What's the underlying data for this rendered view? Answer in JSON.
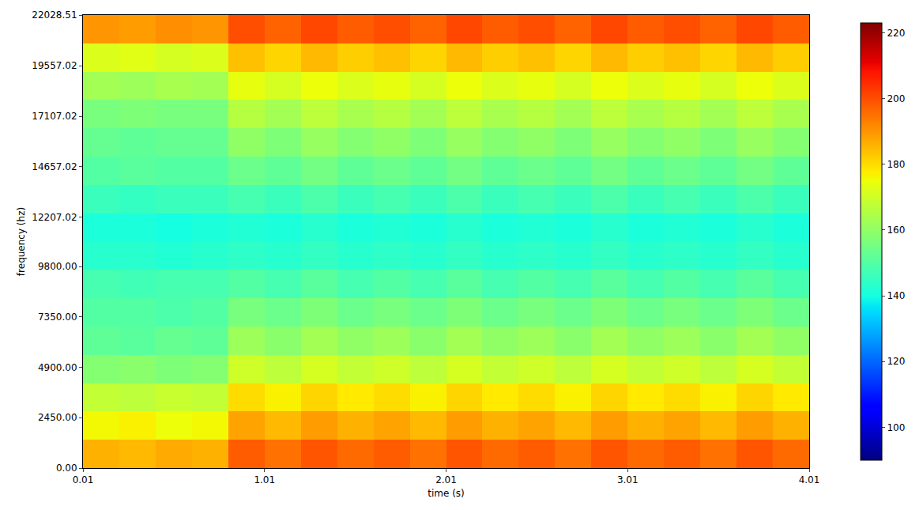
{
  "chart_data": {
    "type": "heatmap",
    "x_label": "time (s)",
    "y_label": "frequency (hz)",
    "color": "jet",
    "x": [
      0.11,
      0.31,
      0.51,
      0.71,
      0.91,
      1.11,
      1.31,
      1.51,
      1.71,
      1.91,
      2.11,
      2.31,
      2.51,
      2.71,
      2.91,
      3.11,
      3.31,
      3.51,
      3.71,
      3.91
    ],
    "y": [
      688,
      2065,
      3442,
      4819,
      6196,
      7572,
      8949,
      10326,
      11703,
      13080,
      14456,
      15833,
      17210,
      18587,
      19964,
      21340
    ],
    "cells": [
      [
        186,
        185,
        187,
        186,
        198,
        195,
        199,
        196,
        198,
        195,
        199,
        196,
        198,
        195,
        199,
        196,
        198,
        195,
        199,
        196
      ],
      [
        176,
        177,
        175,
        176,
        188,
        185,
        189,
        186,
        188,
        185,
        189,
        186,
        188,
        185,
        189,
        186,
        188,
        185,
        189,
        186
      ],
      [
        168,
        167,
        169,
        168,
        180,
        177,
        181,
        178,
        180,
        177,
        181,
        178,
        180,
        177,
        181,
        178,
        180,
        177,
        181,
        178
      ],
      [
        158,
        159,
        157,
        158,
        170,
        167,
        171,
        168,
        170,
        167,
        171,
        168,
        170,
        167,
        171,
        168,
        170,
        167,
        171,
        168
      ],
      [
        152,
        151,
        153,
        152,
        162,
        159,
        163,
        160,
        162,
        159,
        163,
        160,
        162,
        159,
        163,
        160,
        162,
        159,
        163,
        160
      ],
      [
        150,
        150,
        149,
        150,
        156,
        154,
        157,
        154,
        156,
        154,
        157,
        154,
        156,
        154,
        157,
        154,
        156,
        154,
        157,
        154
      ],
      [
        148,
        147,
        148,
        148,
        150,
        148,
        151,
        148,
        150,
        148,
        151,
        148,
        150,
        148,
        151,
        148,
        150,
        148,
        151,
        148
      ],
      [
        143,
        143,
        142,
        143,
        144,
        143,
        145,
        143,
        144,
        143,
        145,
        143,
        144,
        143,
        145,
        143,
        144,
        143,
        145,
        143
      ],
      [
        141,
        141,
        140,
        141,
        142,
        141,
        143,
        141,
        142,
        141,
        143,
        141,
        142,
        141,
        143,
        141,
        142,
        141,
        143,
        141
      ],
      [
        146,
        145,
        146,
        146,
        148,
        146,
        149,
        146,
        148,
        146,
        149,
        146,
        148,
        146,
        149,
        146,
        148,
        146,
        149,
        146
      ],
      [
        150,
        151,
        150,
        150,
        154,
        152,
        155,
        152,
        154,
        152,
        155,
        152,
        154,
        152,
        155,
        152,
        154,
        152,
        155,
        152
      ],
      [
        153,
        152,
        153,
        153,
        160,
        157,
        161,
        158,
        160,
        157,
        161,
        158,
        160,
        157,
        161,
        158,
        160,
        157,
        161,
        158
      ],
      [
        156,
        157,
        156,
        156,
        166,
        163,
        167,
        164,
        166,
        163,
        167,
        164,
        166,
        163,
        167,
        164,
        166,
        163,
        167,
        164
      ],
      [
        163,
        162,
        164,
        163,
        174,
        171,
        175,
        172,
        174,
        171,
        175,
        172,
        174,
        171,
        175,
        172,
        174,
        171,
        175,
        172
      ],
      [
        172,
        173,
        171,
        172,
        184,
        181,
        185,
        182,
        184,
        181,
        185,
        182,
        184,
        181,
        185,
        182,
        184,
        181,
        185,
        182
      ],
      [
        190,
        189,
        191,
        190,
        200,
        197,
        201,
        198,
        200,
        197,
        201,
        198,
        200,
        197,
        201,
        198,
        200,
        197,
        201,
        198
      ]
    ],
    "xlim": [
      0.01,
      4.01
    ],
    "xticks": [
      0.01,
      1.01,
      2.01,
      3.01,
      4.01
    ],
    "ylim": [
      0,
      22028.51
    ],
    "yticks": [
      {
        "value": 0,
        "label": "0.00"
      },
      {
        "value": 2450,
        "label": "2450.00"
      },
      {
        "value": 4900,
        "label": "4900.00"
      },
      {
        "value": 7350,
        "label": "7350.00"
      },
      {
        "value": 9800,
        "label": "9800.00"
      },
      {
        "value": 12207.02,
        "label": "12207.02"
      },
      {
        "value": 14657.02,
        "label": "14657.02"
      },
      {
        "value": 17107.02,
        "label": "17107.02"
      },
      {
        "value": 19557.02,
        "label": "19557.02"
      },
      {
        "value": 22028.51,
        "label": "22028.51"
      }
    ],
    "colorbar_range": [
      90,
      223
    ],
    "colorbar_ticks": [
      100,
      120,
      140,
      160,
      180,
      200,
      220
    ]
  }
}
